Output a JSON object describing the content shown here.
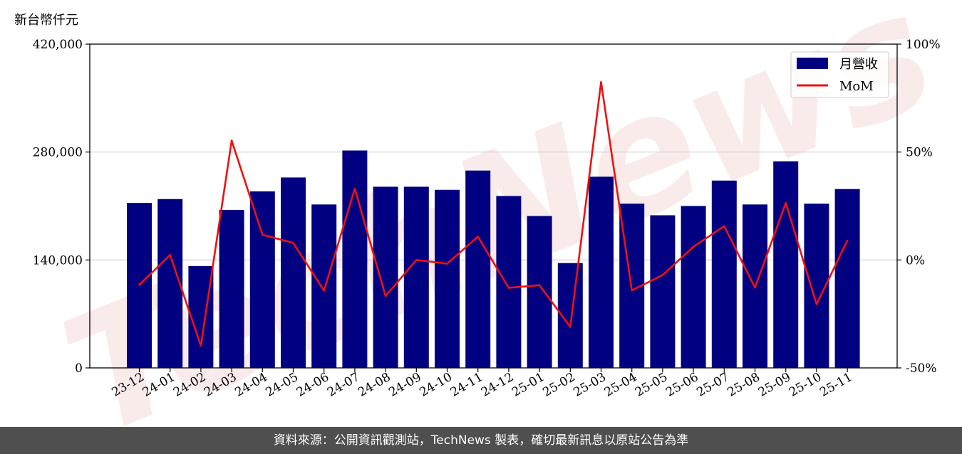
{
  "unit_label": "新台幣仟元",
  "watermark": "TechNews",
  "footer": "資料來源：公開資訊觀測站，TechNews 製表，確切最新訊息以原站公告為準",
  "colors": {
    "bar": "#000080",
    "line": "#ee1111",
    "footer_bg": "#4f4f4f"
  },
  "chart_data": {
    "type": "bar",
    "categories": [
      "23-12",
      "24-01",
      "24-02",
      "24-03",
      "24-04",
      "24-05",
      "24-06",
      "24-07",
      "24-08",
      "24-09",
      "24-10",
      "24-11",
      "24-12",
      "25-01",
      "25-02",
      "25-03",
      "25-04",
      "25-05",
      "25-06",
      "25-07",
      "25-08",
      "25-09",
      "25-10",
      "25-11"
    ],
    "series": [
      {
        "name": "月營收",
        "type": "bar",
        "axis": "left",
        "values": [
          214000,
          219000,
          132000,
          205000,
          229000,
          247000,
          212000,
          282000,
          235000,
          235000,
          231000,
          256000,
          223000,
          197000,
          136000,
          248000,
          213000,
          198000,
          210000,
          243000,
          212000,
          268000,
          213000,
          232000
        ]
      },
      {
        "name": "MoM",
        "type": "line",
        "axis": "right",
        "values": [
          -11.5,
          2.3,
          -39.7,
          55.3,
          11.7,
          7.9,
          -14.2,
          33.0,
          -16.7,
          0.0,
          -1.7,
          10.8,
          -12.9,
          -11.7,
          -31.0,
          82.4,
          -14.1,
          -7.0,
          6.1,
          15.7,
          -12.8,
          26.4,
          -20.5,
          9.0
        ]
      }
    ],
    "left_axis": {
      "ylim": [
        0,
        420000
      ],
      "ticks": [
        "0",
        "140,000",
        "280,000",
        "420,000"
      ],
      "tick_values": [
        0,
        140000,
        280000,
        420000
      ]
    },
    "right_axis": {
      "ylim": [
        -50,
        100
      ],
      "ticks": [
        "-50%",
        "0%",
        "50%",
        "100%"
      ],
      "tick_values": [
        -50,
        0,
        50,
        100
      ]
    },
    "grid": "horizontal",
    "legend": {
      "placement": "top-right",
      "entries": [
        "月營收",
        "MoM"
      ]
    }
  }
}
